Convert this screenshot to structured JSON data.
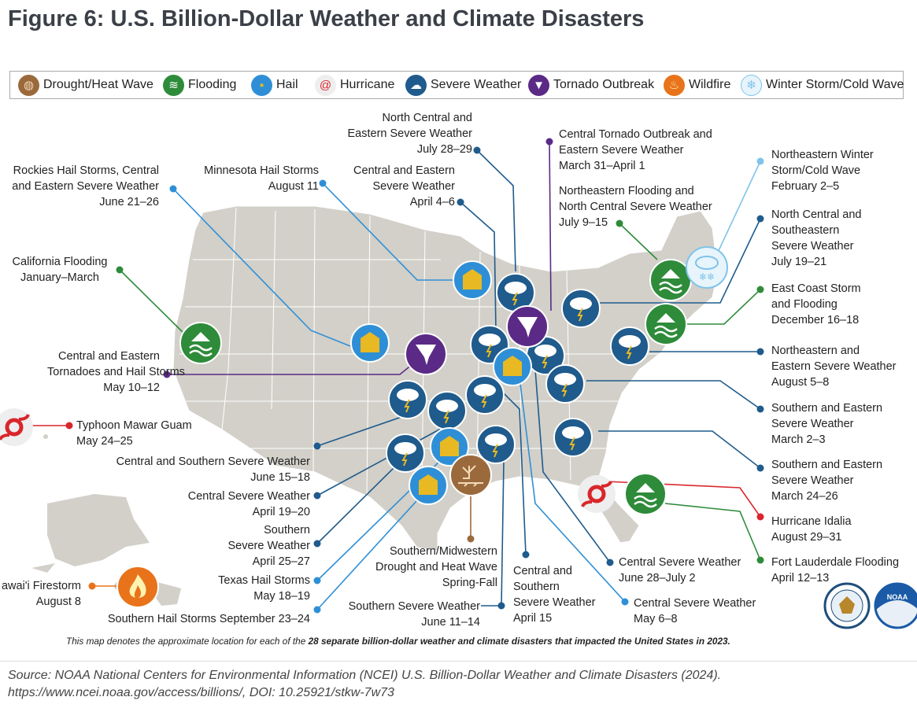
{
  "title": "Figure 6: U.S. Billion-Dollar Weather and Climate Disasters",
  "legend": [
    {
      "label": "Drought/Heat Wave",
      "icon": "drought-icon",
      "color": "#9b6a3c"
    },
    {
      "label": "Flooding",
      "icon": "flooding-icon",
      "color": "#2e8b3a"
    },
    {
      "label": "Hail",
      "icon": "hail-icon",
      "color": "#2f8fd6"
    },
    {
      "label": "Hurricane",
      "icon": "hurricane-icon",
      "color": "#d9262b"
    },
    {
      "label": "Severe Weather",
      "icon": "severe-weather-icon",
      "color": "#1f5b8c"
    },
    {
      "label": "Tornado Outbreak",
      "icon": "tornado-icon",
      "color": "#5b2a86"
    },
    {
      "label": "Wildfire",
      "icon": "wildfire-icon",
      "color": "#e8731a"
    },
    {
      "label": "Winter Storm/Cold Wave",
      "icon": "winter-storm-icon",
      "color": "#7fc3ea"
    }
  ],
  "labels": {
    "l1": [
      "North Central and",
      "Eastern Severe Weather",
      "July 28–29"
    ],
    "l2": [
      "Central Tornado Outbreak and",
      "Eastern Severe Weather",
      "March 31–April 1"
    ],
    "l3": [
      "Rockies Hail Storms, Central",
      "and Eastern Severe Weather",
      "June 21–26"
    ],
    "l4": [
      "Minnesota Hail Storms",
      "August 11"
    ],
    "l5": [
      "Central and Eastern",
      "Severe Weather",
      "April 4–6"
    ],
    "l6": [
      "Northeastern Flooding and",
      "North Central Severe Weather",
      "July 9–15"
    ],
    "l7": [
      "Northeastern Winter",
      "Storm/Cold Wave",
      "February 2–5"
    ],
    "l8": [
      "North Central and",
      "Southeastern",
      "Severe Weather",
      "July 19–21"
    ],
    "l9": [
      "California Flooding",
      "January–March"
    ],
    "l10": [
      "East Coast Storm",
      "and Flooding",
      "December 16–18"
    ],
    "l11": [
      "Central and Eastern",
      "Tornadoes and Hail Storms",
      "May 10–12"
    ],
    "l12": [
      "Northeastern and",
      "Eastern Severe Weather",
      "August 5–8"
    ],
    "l13": [
      "Typhoon Mawar Guam",
      "May 24–25"
    ],
    "l14": [
      "Southern and Eastern",
      "Severe Weather",
      "March 2–3"
    ],
    "l15": [
      "Central and Southern Severe Weather",
      "June 15–18"
    ],
    "l16": [
      "Southern and Eastern",
      "Severe Weather",
      "March 24–26"
    ],
    "l17": [
      "Central Severe Weather",
      "April 19–20"
    ],
    "l18": [
      "Hurricane Idalia",
      "August 29–31"
    ],
    "l19": [
      "Southern",
      "Severe Weather",
      "April 25–27"
    ],
    "l20": [
      "Southern/Midwestern",
      "Drought and Heat Wave",
      "Spring-Fall"
    ],
    "l21": [
      "Central and",
      "Southern",
      "Severe Weather",
      "April 15"
    ],
    "l22": [
      "Central Severe Weather",
      "June 28–July 2"
    ],
    "l23": [
      "Fort Lauderdale Flooding",
      "April 12–13"
    ],
    "l24": [
      "Texas Hail Storms",
      "May 18–19"
    ],
    "l25": [
      "awai'i Firestorm",
      "August 8"
    ],
    "l26": [
      "Southern Severe Weather",
      "June 11–14"
    ],
    "l27": [
      "Central Severe Weather",
      "May 6–8"
    ],
    "l28": [
      "Southern Hail Storms September 23–24"
    ]
  },
  "caption_pre": "This map denotes the approximate location for each of the ",
  "caption_bold": "28 separate billion-dollar weather and climate disasters that impacted the United States in 2023.",
  "source_line1": "Source: NOAA National Centers for Environmental Information (NCEI) U.S. Billion-Dollar Weather and Climate Disasters (2024).",
  "source_line2": "https://www.ncei.noaa.gov/access/billions/, DOI: 10.25921/stkw-7w73",
  "colors": {
    "severe": "#1f5b8c",
    "hail_bg": "#2f8fd6",
    "hail_fg": "#e8b923",
    "flood": "#2e8b3a",
    "tornado": "#5b2a86",
    "hurricane": "#d9262b",
    "wildfire": "#e8731a",
    "drought": "#9b6a3c",
    "winter": "#7fc3ea",
    "land": "#d2d0c9"
  }
}
